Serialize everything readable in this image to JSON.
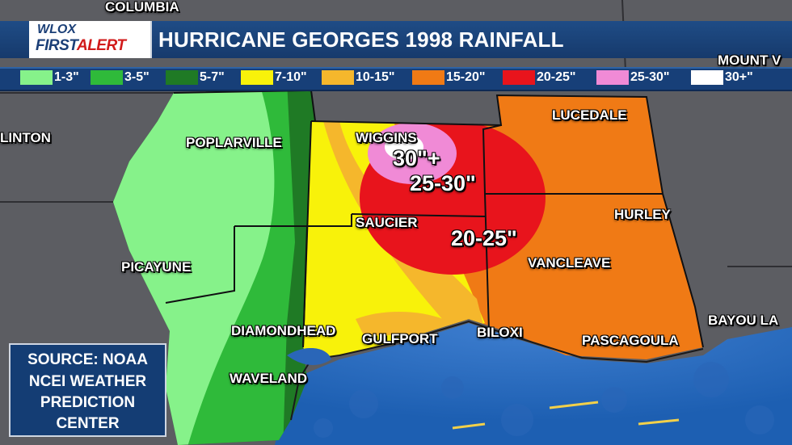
{
  "title": "HURRICANE GEORGES 1998 RAINFALL",
  "logo": {
    "line1": "WLOX",
    "line2a": "FIRST",
    "line2b": "ALERT"
  },
  "legend": [
    {
      "label": "1-3\"",
      "color": "#86f28a"
    },
    {
      "label": "3-5\"",
      "color": "#2fba3a"
    },
    {
      "label": "5-7\"",
      "color": "#1f7a25"
    },
    {
      "label": "7-10\"",
      "color": "#f8f20a"
    },
    {
      "label": "10-15\"",
      "color": "#f5b72c"
    },
    {
      "label": "15-20\"",
      "color": "#f07a15"
    },
    {
      "label": "20-25\"",
      "color": "#e8141c"
    },
    {
      "label": "25-30\"",
      "color": "#f08ad6"
    },
    {
      "label": "30+\"",
      "color": "#ffffff"
    }
  ],
  "cities": {
    "columbia": "COLUMBIA",
    "mount": "MOUNT V",
    "clinton": "LINTON",
    "poplarville": "POPLARVILLE",
    "wiggins": "WIGGINS",
    "lucedale": "LUCEDALE",
    "saucier": "SAUCIER",
    "hurley": "HURLEY",
    "picayune": "PICAYUNE",
    "vancleave": "VANCLEAVE",
    "diamondhead": "DIAMONDHEAD",
    "gulfport": "GULFPORT",
    "biloxi": "BILOXI",
    "pascagoula": "PASCAGOULA",
    "bayou": "BAYOU LA",
    "waveland": "WAVELAND"
  },
  "amounts": {
    "a30": "30\"+",
    "a25": "25-30\"",
    "a20": "20-25\""
  },
  "source": [
    "SOURCE: NOAA",
    "NCEI WEATHER",
    "PREDICTION",
    "CENTER"
  ]
}
